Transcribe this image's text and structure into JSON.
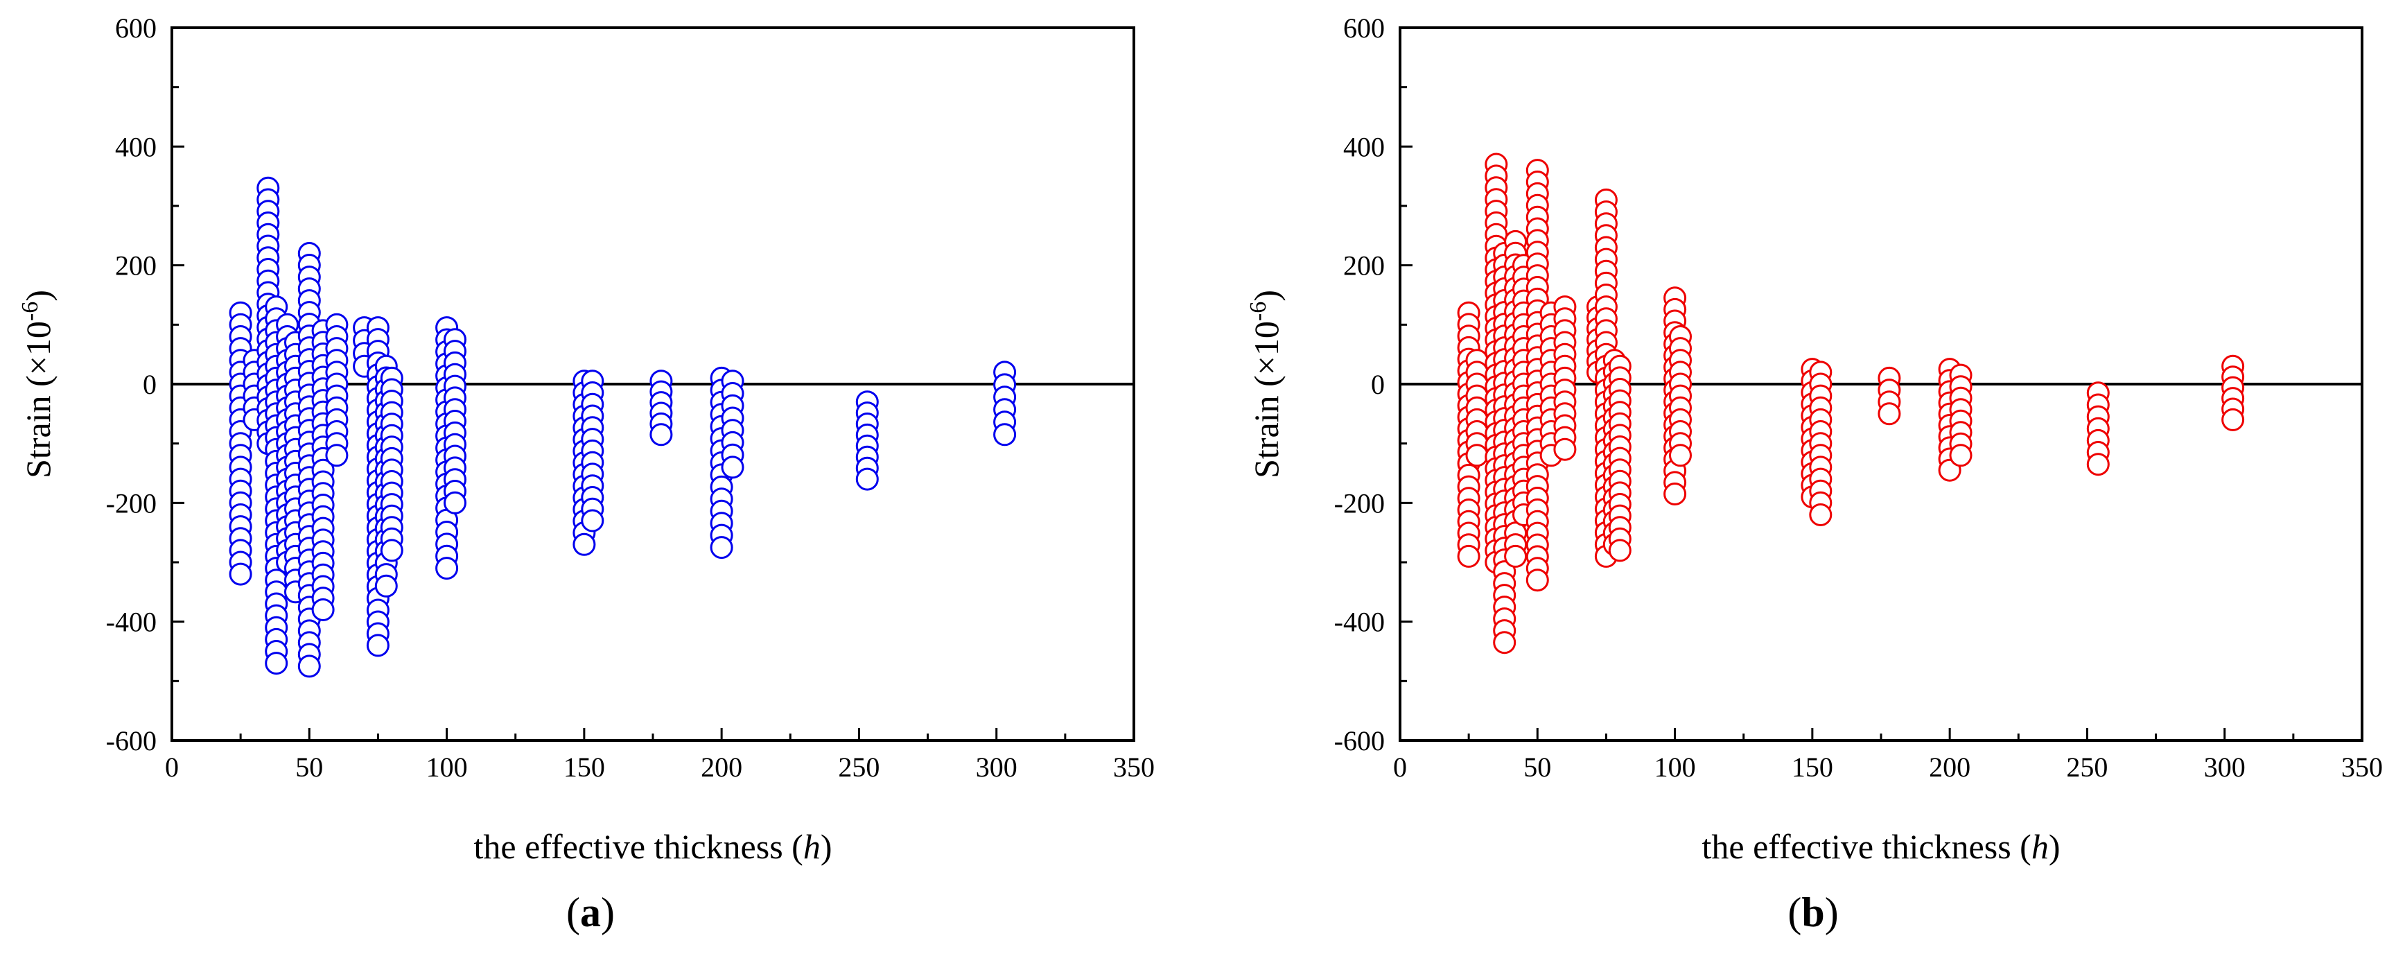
{
  "chart_data": [
    {
      "type": "scatter",
      "panel_label": "a",
      "color": "#0000ee",
      "xlabel": "the effective thickness",
      "xlabel_var": "h",
      "ylabel": "Strain",
      "ylabel_unit": "(×10",
      "ylabel_exp": "-6",
      "ylabel_close": ")",
      "xlim": [
        0,
        350
      ],
      "ylim": [
        -600,
        600
      ],
      "xticks": [
        0,
        50,
        100,
        150,
        200,
        250,
        300,
        350
      ],
      "yticks": [
        -600,
        -400,
        -200,
        0,
        200,
        400,
        600
      ],
      "groups": [
        {
          "x": 25,
          "min": -320,
          "max": 120
        },
        {
          "x": 30,
          "min": -60,
          "max": 40
        },
        {
          "x": 35,
          "min": -100,
          "max": 330
        },
        {
          "x": 38,
          "min": -470,
          "max": 130
        },
        {
          "x": 42,
          "min": -300,
          "max": 100
        },
        {
          "x": 45,
          "min": -350,
          "max": 70
        },
        {
          "x": 50,
          "min": -475,
          "max": 220
        },
        {
          "x": 55,
          "min": -380,
          "max": 90
        },
        {
          "x": 60,
          "min": -120,
          "max": 100
        },
        {
          "x": 70,
          "min": 30,
          "max": 95
        },
        {
          "x": 75,
          "min": -440,
          "max": 95
        },
        {
          "x": 78,
          "min": -340,
          "max": 30
        },
        {
          "x": 80,
          "min": -280,
          "max": 10
        },
        {
          "x": 100,
          "min": -310,
          "max": 95
        },
        {
          "x": 103,
          "min": -200,
          "max": 75
        },
        {
          "x": 150,
          "min": -270,
          "max": 5
        },
        {
          "x": 153,
          "min": -230,
          "max": 5
        },
        {
          "x": 178,
          "min": -85,
          "max": 5
        },
        {
          "x": 200,
          "min": -275,
          "max": 10
        },
        {
          "x": 204,
          "min": -140,
          "max": 5
        },
        {
          "x": 253,
          "min": -160,
          "max": -30
        },
        {
          "x": 303,
          "min": -85,
          "max": 20
        }
      ]
    },
    {
      "type": "scatter",
      "panel_label": "b",
      "color": "#ee0000",
      "xlabel": "the effective thickness",
      "xlabel_var": "h",
      "ylabel": "Strain",
      "ylabel_unit": "(×10",
      "ylabel_exp": "-6",
      "ylabel_close": ")",
      "xlim": [
        0,
        350
      ],
      "ylim": [
        -600,
        600
      ],
      "xticks": [
        0,
        50,
        100,
        150,
        200,
        250,
        300,
        350
      ],
      "yticks": [
        -600,
        -400,
        -200,
        0,
        200,
        400,
        600
      ],
      "groups": [
        {
          "x": 25,
          "min": -290,
          "max": 120
        },
        {
          "x": 28,
          "min": -120,
          "max": 40
        },
        {
          "x": 35,
          "min": -300,
          "max": 370
        },
        {
          "x": 38,
          "min": -435,
          "max": 220
        },
        {
          "x": 42,
          "min": -290,
          "max": 240
        },
        {
          "x": 45,
          "min": -220,
          "max": 200
        },
        {
          "x": 50,
          "min": -330,
          "max": 360
        },
        {
          "x": 55,
          "min": -120,
          "max": 120
        },
        {
          "x": 60,
          "min": -110,
          "max": 130
        },
        {
          "x": 72,
          "min": 20,
          "max": 130
        },
        {
          "x": 75,
          "min": -290,
          "max": 310
        },
        {
          "x": 78,
          "min": -270,
          "max": 40
        },
        {
          "x": 80,
          "min": -280,
          "max": 30
        },
        {
          "x": 100,
          "min": -185,
          "max": 145
        },
        {
          "x": 102,
          "min": -120,
          "max": 80
        },
        {
          "x": 150,
          "min": -190,
          "max": 25
        },
        {
          "x": 153,
          "min": -220,
          "max": 20
        },
        {
          "x": 178,
          "min": -50,
          "max": 10
        },
        {
          "x": 200,
          "min": -145,
          "max": 25
        },
        {
          "x": 204,
          "min": -120,
          "max": 15
        },
        {
          "x": 254,
          "min": -135,
          "max": -15
        },
        {
          "x": 303,
          "min": -60,
          "max": 30
        }
      ]
    }
  ]
}
